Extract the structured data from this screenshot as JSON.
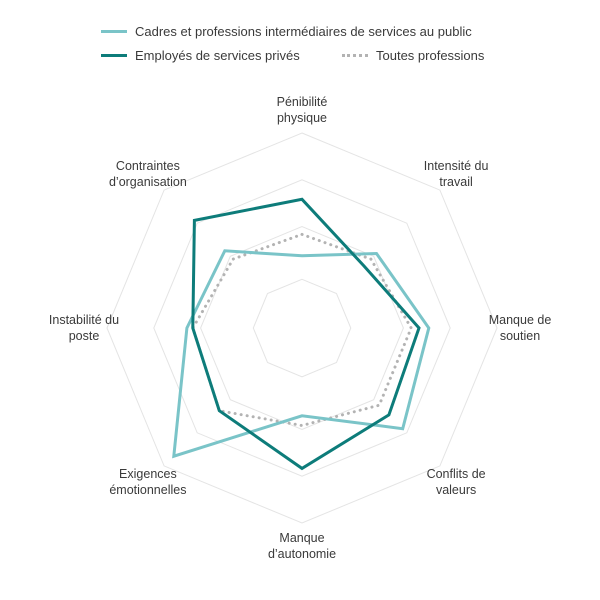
{
  "chart_data": {
    "type": "radar",
    "axes": [
      [
        "Pénibilité",
        "physique"
      ],
      [
        "Intensité du",
        "travail"
      ],
      [
        "Manque de",
        "soutien"
      ],
      [
        "Conflits de",
        "valeurs"
      ],
      [
        "Manque",
        "d’autonomie"
      ],
      [
        "Exigences",
        "émotionnelles"
      ],
      [
        "Instabilité du",
        "poste"
      ],
      [
        "Contraintes",
        "d’organisation"
      ]
    ],
    "rmax": 1.0,
    "rings": 4,
    "grid": true,
    "legend_position": "top",
    "series": [
      {
        "name": "Cadres et professions intermédiaires de services au public",
        "color": "#7ac4c8",
        "style": "solid",
        "values": [
          0.37,
          0.54,
          0.65,
          0.73,
          0.45,
          0.93,
          0.59,
          0.56
        ]
      },
      {
        "name": "Employés de services privés",
        "color": "#0d7c7a",
        "style": "solid",
        "values": [
          0.66,
          0.45,
          0.6,
          0.63,
          0.72,
          0.6,
          0.56,
          0.78
        ]
      },
      {
        "name": "Toutes professions",
        "color": "#b3b3b3",
        "style": "dotted",
        "values": [
          0.48,
          0.5,
          0.56,
          0.56,
          0.5,
          0.6,
          0.56,
          0.5
        ]
      }
    ]
  }
}
